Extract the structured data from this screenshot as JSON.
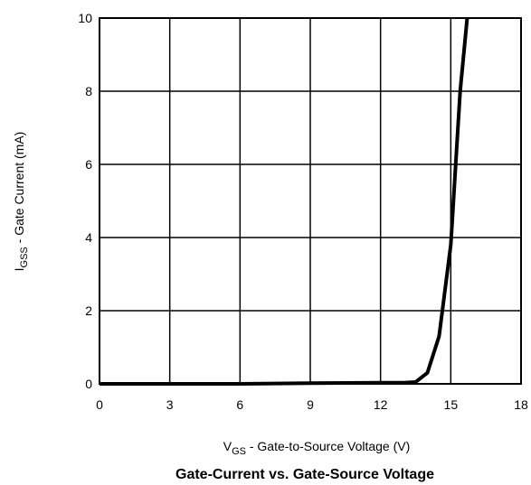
{
  "chart_data": {
    "type": "line",
    "title": "Gate-Current vs. Gate-Source Voltage",
    "xlabel": {
      "main": "V",
      "sub": "GS",
      "rest": " - Gate-to-Source Voltage (V)"
    },
    "ylabel": {
      "main": "I",
      "sub": "GSS",
      "rest": " - Gate Current (mA)"
    },
    "xlim": [
      0,
      18
    ],
    "ylim": [
      0,
      10
    ],
    "xticks": [
      0,
      3,
      6,
      9,
      12,
      15,
      18
    ],
    "yticks": [
      0,
      2,
      4,
      6,
      8,
      10
    ],
    "grid": true,
    "series": [
      {
        "color": "#000000",
        "x": [
          0,
          3,
          6,
          9,
          12,
          13,
          13.5,
          14,
          14.5,
          15,
          15.4,
          15.7
        ],
        "y": [
          0,
          0,
          0,
          0.02,
          0.03,
          0.03,
          0.05,
          0.3,
          1.3,
          3.8,
          8.0,
          10.0
        ]
      }
    ]
  }
}
